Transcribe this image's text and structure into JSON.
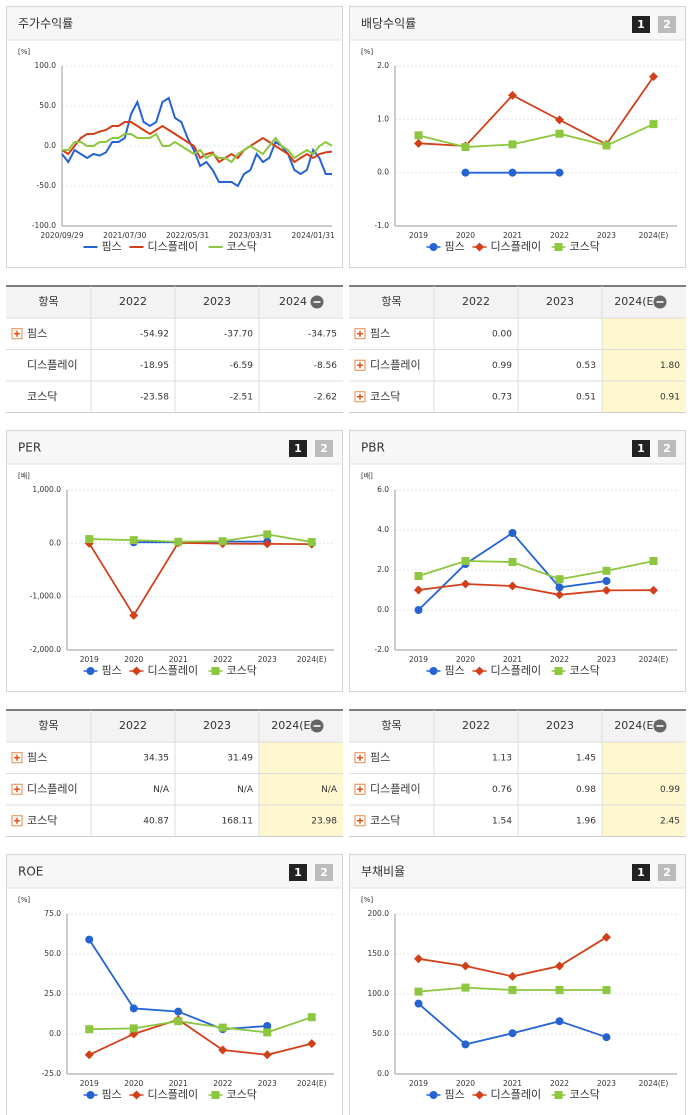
{
  "chart_data": [
    {
      "type": "line",
      "title": "주가수익률",
      "y_unit": "[%]",
      "categories": [
        "2020/09/29",
        null,
        null,
        null,
        null,
        null,
        null,
        null,
        null,
        null,
        "2021/07/30",
        null,
        null,
        null,
        null,
        null,
        null,
        null,
        null,
        null,
        "2022/05/31",
        null,
        null,
        null,
        null,
        null,
        null,
        null,
        null,
        null,
        "2023/03/31",
        null,
        null,
        null,
        null,
        null,
        null,
        null,
        null,
        null,
        "2024/01/31",
        null,
        null,
        null
      ],
      "ylim": [
        -100,
        100
      ],
      "yticks": [
        {
          "value": -100,
          "label": "-100.0"
        },
        {
          "value": -50,
          "label": "-50.0"
        },
        {
          "value": 0,
          "label": "0.0"
        },
        {
          "value": 50,
          "label": "50.0"
        },
        {
          "value": 100,
          "label": "100.0"
        }
      ],
      "grid": true,
      "series": [
        {
          "name": "핌스",
          "color": "#2463d1",
          "values": [
            -10,
            -20,
            -5,
            -10,
            -15,
            -10,
            -12,
            -8,
            5,
            5,
            10,
            40,
            55,
            30,
            25,
            30,
            55,
            60,
            35,
            30,
            10,
            -5,
            -25,
            -20,
            -30,
            -45,
            -45,
            -45,
            -50,
            -35,
            -30,
            -10,
            -20,
            -15,
            5,
            0,
            -10,
            -30,
            -35,
            -30,
            -5,
            -15,
            -35,
            -35
          ]
        },
        {
          "name": "디스플레이",
          "color": "#d2401a",
          "values": [
            -5,
            -10,
            0,
            10,
            15,
            15,
            18,
            20,
            25,
            25,
            30,
            30,
            25,
            20,
            15,
            20,
            25,
            20,
            15,
            10,
            5,
            0,
            -15,
            -10,
            -8,
            -20,
            -15,
            -10,
            -15,
            -5,
            0,
            5,
            10,
            5,
            0,
            -5,
            -10,
            -20,
            -15,
            -10,
            -15,
            -10,
            -8,
            -7
          ]
        },
        {
          "name": "코스닥",
          "color": "#8dc63f",
          "values": [
            -5,
            -5,
            5,
            5,
            0,
            0,
            5,
            5,
            10,
            10,
            15,
            15,
            10,
            10,
            10,
            15,
            0,
            0,
            5,
            0,
            -5,
            -10,
            -5,
            -15,
            -10,
            -15,
            -15,
            -20,
            -10,
            -5,
            0,
            -5,
            -10,
            0,
            10,
            0,
            -5,
            -15,
            -10,
            -5,
            -10,
            0,
            5,
            0
          ]
        }
      ]
    },
    {
      "type": "line",
      "title": "배당수익률",
      "buttons": [
        "1",
        "2"
      ],
      "y_unit": "[%]",
      "categories": [
        "2019",
        "2020",
        "2021",
        "2022",
        "2023",
        "2024(E)"
      ],
      "ylim": [
        -1,
        2
      ],
      "yticks": [
        {
          "value": -1,
          "label": "-1.0"
        },
        {
          "value": 0,
          "label": "0.0"
        },
        {
          "value": 1,
          "label": "1.0"
        },
        {
          "value": 2,
          "label": "2.0"
        }
      ],
      "grid": true,
      "series": [
        {
          "name": "핌스",
          "color": "#2463d1",
          "marker": "circle",
          "values": [
            null,
            0,
            0,
            0,
            null,
            null
          ]
        },
        {
          "name": "디스플레이",
          "color": "#d2401a",
          "marker": "diamond",
          "values": [
            0.55,
            0.5,
            1.45,
            0.99,
            0.53,
            1.8
          ]
        },
        {
          "name": "코스닥",
          "color": "#8dc63f",
          "marker": "square",
          "values": [
            0.7,
            0.48,
            0.53,
            0.73,
            0.51,
            0.91
          ]
        }
      ]
    },
    {
      "type": "line",
      "title": "PER",
      "buttons": [
        "1",
        "2"
      ],
      "y_unit": "[배]",
      "categories": [
        "2019",
        "2020",
        "2021",
        "2022",
        "2023",
        "2024(E)"
      ],
      "ylim": [
        -2000,
        1000
      ],
      "yticks": [
        {
          "value": -2000,
          "label": "-2,000.0"
        },
        {
          "value": -1000,
          "label": "-1,000.0"
        },
        {
          "value": 0,
          "label": "0.0"
        },
        {
          "value": 1000,
          "label": "1,000.0"
        }
      ],
      "grid": true,
      "series": [
        {
          "name": "핌스",
          "color": "#2463d1",
          "marker": "circle",
          "values": [
            null,
            20,
            20,
            34.35,
            31.49,
            null
          ]
        },
        {
          "name": "디스플레이",
          "color": "#d2401a",
          "marker": "diamond",
          "values": [
            0,
            -1350,
            10,
            -5,
            -10,
            -15
          ]
        },
        {
          "name": "코스닥",
          "color": "#8dc63f",
          "marker": "square",
          "values": [
            80,
            60,
            30,
            40.87,
            168.11,
            23.98
          ]
        }
      ]
    },
    {
      "type": "line",
      "title": "PBR",
      "buttons": [
        "1",
        "2"
      ],
      "y_unit": "[배]",
      "categories": [
        "2019",
        "2020",
        "2021",
        "2022",
        "2023",
        "2024(E)"
      ],
      "ylim": [
        -2,
        6
      ],
      "yticks": [
        {
          "value": -2,
          "label": "-2.0"
        },
        {
          "value": 0,
          "label": "0.0"
        },
        {
          "value": 2,
          "label": "2.0"
        },
        {
          "value": 4,
          "label": "4.0"
        },
        {
          "value": 6,
          "label": "6.0"
        }
      ],
      "grid": true,
      "series": [
        {
          "name": "핌스",
          "color": "#2463d1",
          "marker": "circle",
          "values": [
            0,
            2.3,
            3.85,
            1.13,
            1.45,
            null
          ]
        },
        {
          "name": "디스플레이",
          "color": "#d2401a",
          "marker": "diamond",
          "values": [
            1,
            1.3,
            1.2,
            0.76,
            0.98,
            0.99
          ]
        },
        {
          "name": "코스닥",
          "color": "#8dc63f",
          "marker": "square",
          "values": [
            1.7,
            2.45,
            2.4,
            1.54,
            1.96,
            2.45
          ]
        }
      ]
    },
    {
      "type": "line",
      "title": "ROE",
      "buttons": [
        "1",
        "2"
      ],
      "y_unit": "[%]",
      "categories": [
        "2019",
        "2020",
        "2021",
        "2022",
        "2023",
        "2024(E)"
      ],
      "ylim": [
        -25,
        75
      ],
      "yticks": [
        {
          "value": -25,
          "label": "-25.0"
        },
        {
          "value": 0,
          "label": "0.0"
        },
        {
          "value": 25,
          "label": "25.0"
        },
        {
          "value": 50,
          "label": "50.0"
        },
        {
          "value": 75,
          "label": "75.0"
        }
      ],
      "grid": true,
      "series": [
        {
          "name": "핌스",
          "color": "#2463d1",
          "marker": "circle",
          "values": [
            59,
            16,
            14,
            3,
            5,
            null
          ]
        },
        {
          "name": "디스플레이",
          "color": "#d2401a",
          "marker": "diamond",
          "values": [
            -13,
            0,
            9,
            -10,
            -13,
            -6
          ]
        },
        {
          "name": "코스닥",
          "color": "#8dc63f",
          "marker": "square",
          "values": [
            3,
            3.5,
            8,
            4,
            1,
            10.5
          ]
        }
      ]
    },
    {
      "type": "line",
      "title": "부채비율",
      "buttons": [
        "1",
        "2"
      ],
      "y_unit": "[%]",
      "categories": [
        "2019",
        "2020",
        "2021",
        "2022",
        "2023",
        "2024(E)"
      ],
      "ylim": [
        0,
        200
      ],
      "yticks": [
        {
          "value": 0,
          "label": "0.0"
        },
        {
          "value": 50,
          "label": "50.0"
        },
        {
          "value": 100,
          "label": "100.0"
        },
        {
          "value": 150,
          "label": "150.0"
        },
        {
          "value": 200,
          "label": "200.0"
        }
      ],
      "grid": true,
      "series": [
        {
          "name": "핌스",
          "color": "#2463d1",
          "marker": "circle",
          "values": [
            88,
            37,
            51,
            66,
            46,
            null
          ]
        },
        {
          "name": "디스플레이",
          "color": "#d2401a",
          "marker": "diamond",
          "values": [
            144,
            135,
            122,
            135,
            171,
            null
          ]
        },
        {
          "name": "코스닥",
          "color": "#8dc63f",
          "marker": "square",
          "values": [
            103,
            108,
            105,
            105,
            105,
            null
          ]
        }
      ]
    }
  ],
  "tables": [
    {
      "headers": [
        "항목",
        "2022",
        "2023",
        "2024"
      ],
      "highlight_last": false,
      "rows": [
        {
          "name": "핌스",
          "plus": true,
          "cells": [
            "-54.92",
            "-37.70",
            "-34.75"
          ]
        },
        {
          "name": "디스플레이",
          "plus": false,
          "cells": [
            "-18.95",
            "-6.59",
            "-8.56"
          ]
        },
        {
          "name": "코스닥",
          "plus": false,
          "cells": [
            "-23.58",
            "-2.51",
            "-2.62"
          ]
        }
      ]
    },
    {
      "headers": [
        "항목",
        "2022",
        "2023",
        "2024(E)"
      ],
      "highlight_last": true,
      "rows": [
        {
          "name": "핌스",
          "plus": true,
          "cells": [
            "0.00",
            null,
            null
          ]
        },
        {
          "name": "디스플레이",
          "plus": true,
          "cells": [
            "0.99",
            "0.53",
            "1.80"
          ]
        },
        {
          "name": "코스닥",
          "plus": true,
          "cells": [
            "0.73",
            "0.51",
            "0.91"
          ]
        }
      ]
    },
    {
      "headers": [
        "항목",
        "2022",
        "2023",
        "2024(E)"
      ],
      "highlight_last": true,
      "rows": [
        {
          "name": "핌스",
          "plus": true,
          "cells": [
            "34.35",
            "31.49",
            null
          ]
        },
        {
          "name": "디스플레이",
          "plus": true,
          "cells": [
            "N/A",
            "N/A",
            "N/A"
          ]
        },
        {
          "name": "코스닥",
          "plus": true,
          "cells": [
            "40.87",
            "168.11",
            "23.98"
          ]
        }
      ]
    },
    {
      "headers": [
        "항목",
        "2022",
        "2023",
        "2024(E)"
      ],
      "highlight_last": true,
      "rows": [
        {
          "name": "핌스",
          "plus": true,
          "cells": [
            "1.13",
            "1.45",
            null
          ]
        },
        {
          "name": "디스플레이",
          "plus": true,
          "cells": [
            "0.76",
            "0.98",
            "0.99"
          ]
        },
        {
          "name": "코스닥",
          "plus": true,
          "cells": [
            "1.54",
            "1.96",
            "2.45"
          ]
        }
      ]
    }
  ]
}
